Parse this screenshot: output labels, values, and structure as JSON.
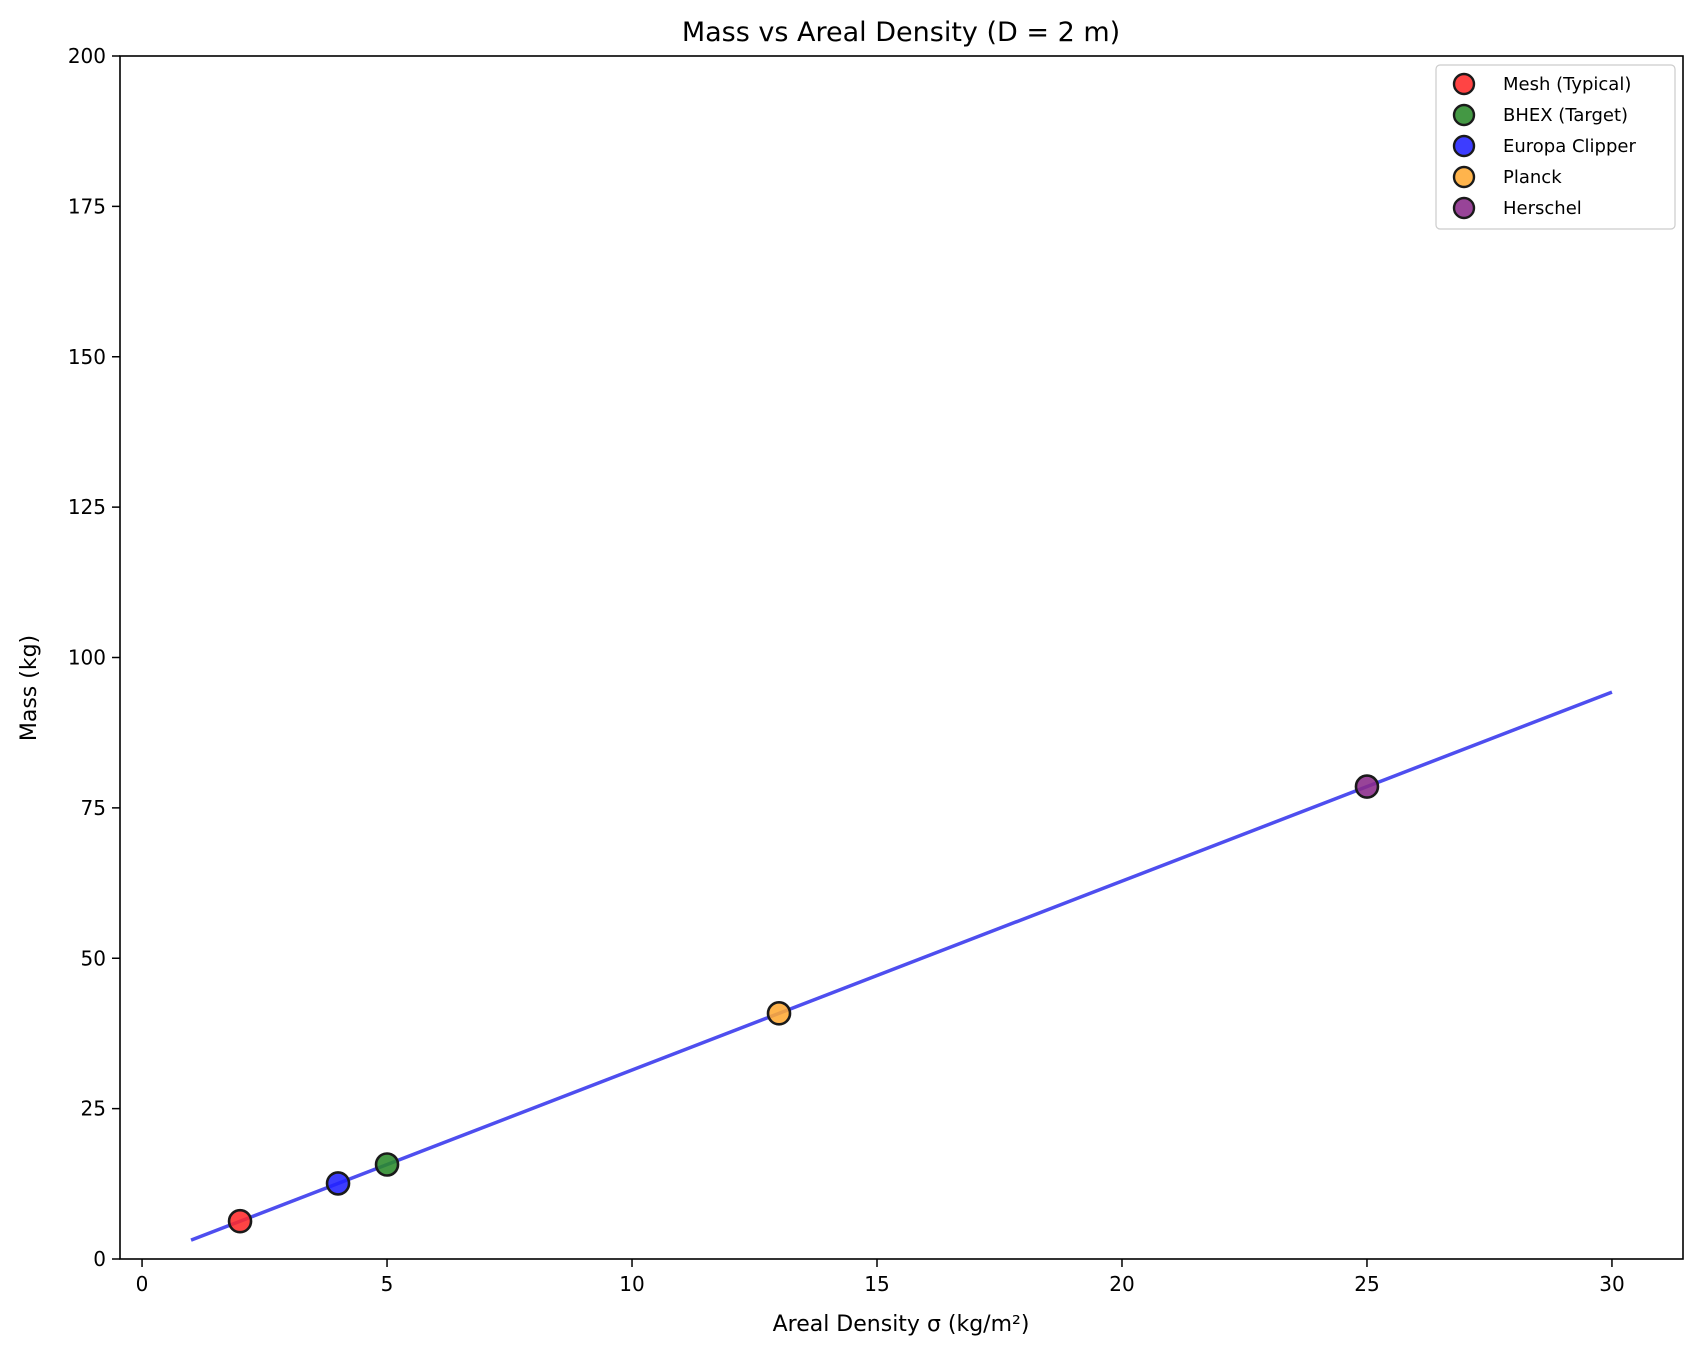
{
  "chart_data": {
    "type": "scatter",
    "title": "Mass vs Areal Density (D = 2 m)",
    "xlabel": "Areal Density σ (kg/m²)",
    "ylabel": "Mass (kg)",
    "xlim": [
      -0.45,
      31.45
    ],
    "ylim": [
      0,
      200
    ],
    "xticks": [
      0,
      5,
      10,
      15,
      20,
      25,
      30
    ],
    "yticks": [
      0,
      25,
      50,
      75,
      100,
      125,
      150,
      175,
      200
    ],
    "grid": false,
    "legend_position": "top-right",
    "line": {
      "color": "#4444ee",
      "x": [
        1,
        30
      ],
      "y": [
        3.14,
        94.25
      ]
    },
    "series": [
      {
        "name": "Mesh (Typical)",
        "color": "#ff2a2a",
        "x": [
          2
        ],
        "y": [
          6.28
        ]
      },
      {
        "name": "BHEX (Target)",
        "color": "#2a8a2a",
        "x": [
          5
        ],
        "y": [
          15.71
        ]
      },
      {
        "name": "Europa Clipper",
        "color": "#2222ff",
        "x": [
          4
        ],
        "y": [
          12.57
        ]
      },
      {
        "name": "Planck",
        "color": "#ffaa33",
        "x": [
          13
        ],
        "y": [
          40.84
        ]
      },
      {
        "name": "Herschel",
        "color": "#8a2a8a",
        "x": [
          25
        ],
        "y": [
          78.54
        ]
      }
    ]
  }
}
